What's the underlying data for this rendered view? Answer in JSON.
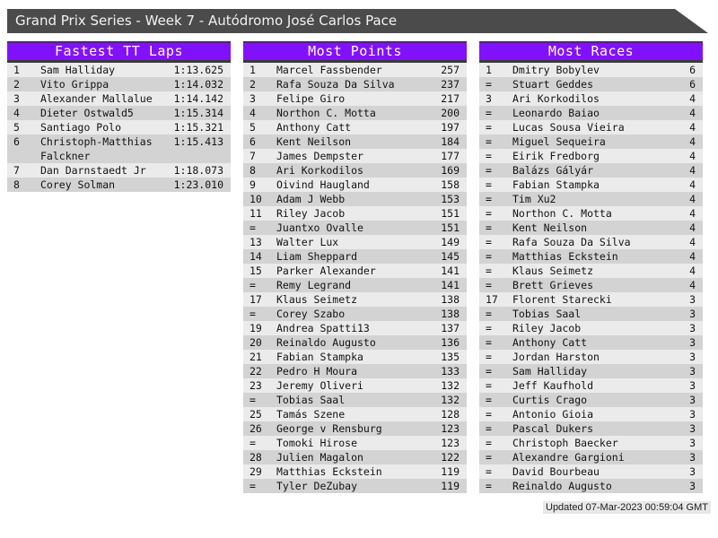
{
  "header": {
    "title": "Grand Prix Series - Week 7 - Autódromo José Carlos Pace"
  },
  "colors": {
    "titlebar_bg": "#4b4b4b",
    "accent_purple": "#8211fb",
    "header_border": "#3a3a3a",
    "row_light": "#ebebeb",
    "row_dark": "#d3d3d3"
  },
  "tables": [
    {
      "title": "Fastest TT Laps",
      "rows": [
        {
          "rank": "1",
          "name": "Sam Halliday",
          "value": "1:13.625"
        },
        {
          "rank": "2",
          "name": "Vito Grippa",
          "value": "1:14.032"
        },
        {
          "rank": "3",
          "name": "Alexander Mallalue",
          "value": "1:14.142"
        },
        {
          "rank": "4",
          "name": "Dieter Ostwald5",
          "value": "1:15.314"
        },
        {
          "rank": "5",
          "name": "Santiago Polo",
          "value": "1:15.321"
        },
        {
          "rank": "6",
          "name": "Christoph-Matthias Falckner",
          "value": "1:15.413"
        },
        {
          "rank": "7",
          "name": "Dan Darnstaedt Jr",
          "value": "1:18.073"
        },
        {
          "rank": "8",
          "name": "Corey Solman",
          "value": "1:23.010"
        }
      ]
    },
    {
      "title": "Most Points",
      "rows": [
        {
          "rank": "1",
          "name": "Marcel Fassbender",
          "value": "257"
        },
        {
          "rank": "2",
          "name": "Rafa Souza Da Silva",
          "value": "237"
        },
        {
          "rank": "3",
          "name": "Felipe Giro",
          "value": "217"
        },
        {
          "rank": "4",
          "name": "Northon C. Motta",
          "value": "200"
        },
        {
          "rank": "5",
          "name": "Anthony Catt",
          "value": "197"
        },
        {
          "rank": "6",
          "name": "Kent Neilson",
          "value": "184"
        },
        {
          "rank": "7",
          "name": "James Dempster",
          "value": "177"
        },
        {
          "rank": "8",
          "name": "Ari Korkodilos",
          "value": "169"
        },
        {
          "rank": "9",
          "name": "Oivind Haugland",
          "value": "158"
        },
        {
          "rank": "10",
          "name": "Adam J Webb",
          "value": "153"
        },
        {
          "rank": "11",
          "name": "Riley Jacob",
          "value": "151"
        },
        {
          "rank": "=",
          "name": "Juantxo Ovalle",
          "value": "151"
        },
        {
          "rank": "13",
          "name": "Walter Lux",
          "value": "149"
        },
        {
          "rank": "14",
          "name": "Liam Sheppard",
          "value": "145"
        },
        {
          "rank": "15",
          "name": "Parker Alexander",
          "value": "141"
        },
        {
          "rank": "=",
          "name": "Remy Legrand",
          "value": "141"
        },
        {
          "rank": "17",
          "name": "Klaus Seimetz",
          "value": "138"
        },
        {
          "rank": "=",
          "name": "Corey Szabo",
          "value": "138"
        },
        {
          "rank": "19",
          "name": "Andrea Spatti13",
          "value": "137"
        },
        {
          "rank": "20",
          "name": "Reinaldo Augusto",
          "value": "136"
        },
        {
          "rank": "21",
          "name": "Fabian Stampka",
          "value": "135"
        },
        {
          "rank": "22",
          "name": "Pedro H Moura",
          "value": "133"
        },
        {
          "rank": "23",
          "name": "Jeremy Oliveri",
          "value": "132"
        },
        {
          "rank": "=",
          "name": "Tobias Saal",
          "value": "132"
        },
        {
          "rank": "25",
          "name": "Tamás Szene",
          "value": "128"
        },
        {
          "rank": "26",
          "name": "George v Rensburg",
          "value": "123"
        },
        {
          "rank": "=",
          "name": "Tomoki Hirose",
          "value": "123"
        },
        {
          "rank": "28",
          "name": "Julien Magalon",
          "value": "122"
        },
        {
          "rank": "29",
          "name": "Matthias Eckstein",
          "value": "119"
        },
        {
          "rank": "=",
          "name": "Tyler DeZubay",
          "value": "119"
        }
      ]
    },
    {
      "title": "Most Races",
      "rows": [
        {
          "rank": "1",
          "name": "Dmitry Bobylev",
          "value": "6"
        },
        {
          "rank": "=",
          "name": "Stuart Geddes",
          "value": "6"
        },
        {
          "rank": "3",
          "name": "Ari Korkodilos",
          "value": "4"
        },
        {
          "rank": "=",
          "name": "Leonardo Baiao",
          "value": "4"
        },
        {
          "rank": "=",
          "name": "Lucas Sousa Vieira",
          "value": "4"
        },
        {
          "rank": "=",
          "name": "Miguel Sequeira",
          "value": "4"
        },
        {
          "rank": "=",
          "name": "Eirik Fredborg",
          "value": "4"
        },
        {
          "rank": "=",
          "name": "Balázs Gályár",
          "value": "4"
        },
        {
          "rank": "=",
          "name": "Fabian Stampka",
          "value": "4"
        },
        {
          "rank": "=",
          "name": "Tim Xu2",
          "value": "4"
        },
        {
          "rank": "=",
          "name": "Northon C. Motta",
          "value": "4"
        },
        {
          "rank": "=",
          "name": "Kent Neilson",
          "value": "4"
        },
        {
          "rank": "=",
          "name": "Rafa Souza Da Silva",
          "value": "4"
        },
        {
          "rank": "=",
          "name": "Matthias Eckstein",
          "value": "4"
        },
        {
          "rank": "=",
          "name": "Klaus Seimetz",
          "value": "4"
        },
        {
          "rank": "=",
          "name": "Brett Grieves",
          "value": "4"
        },
        {
          "rank": "17",
          "name": "Florent Starecki",
          "value": "3"
        },
        {
          "rank": "=",
          "name": "Tobias Saal",
          "value": "3"
        },
        {
          "rank": "=",
          "name": "Riley Jacob",
          "value": "3"
        },
        {
          "rank": "=",
          "name": "Anthony Catt",
          "value": "3"
        },
        {
          "rank": "=",
          "name": "Jordan Harston",
          "value": "3"
        },
        {
          "rank": "=",
          "name": "Sam Halliday",
          "value": "3"
        },
        {
          "rank": "=",
          "name": "Jeff Kaufhold",
          "value": "3"
        },
        {
          "rank": "=",
          "name": "Curtis Crago",
          "value": "3"
        },
        {
          "rank": "=",
          "name": "Antonio Gioia",
          "value": "3"
        },
        {
          "rank": "=",
          "name": "Pascal Dukers",
          "value": "3"
        },
        {
          "rank": "=",
          "name": "Christoph Baecker",
          "value": "3"
        },
        {
          "rank": "=",
          "name": "Alexandre Gargioni",
          "value": "3"
        },
        {
          "rank": "=",
          "name": "David Bourbeau",
          "value": "3"
        },
        {
          "rank": "=",
          "name": "Reinaldo Augusto",
          "value": "3"
        }
      ]
    }
  ],
  "footer": {
    "updated": "Updated 07-Mar-2023 00:59:04 GMT"
  }
}
